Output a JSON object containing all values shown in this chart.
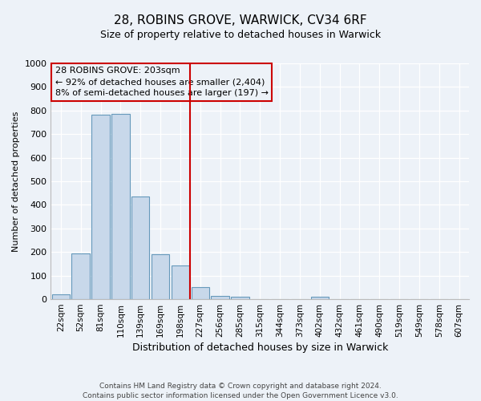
{
  "title": "28, ROBINS GROVE, WARWICK, CV34 6RF",
  "subtitle": "Size of property relative to detached houses in Warwick",
  "xlabel": "Distribution of detached houses by size in Warwick",
  "ylabel": "Number of detached properties",
  "bar_labels": [
    "22sqm",
    "52sqm",
    "81sqm",
    "110sqm",
    "139sqm",
    "169sqm",
    "198sqm",
    "227sqm",
    "256sqm",
    "285sqm",
    "315sqm",
    "344sqm",
    "373sqm",
    "402sqm",
    "432sqm",
    "461sqm",
    "490sqm",
    "519sqm",
    "549sqm",
    "578sqm",
    "607sqm"
  ],
  "bar_values": [
    20,
    195,
    782,
    785,
    437,
    192,
    143,
    50,
    15,
    10,
    0,
    0,
    0,
    10,
    0,
    0,
    0,
    0,
    0,
    0,
    0
  ],
  "bar_color": "#c8d8ea",
  "bar_edge_color": "#6699bb",
  "vline_x_idx": 6.5,
  "vline_color": "#cc0000",
  "ylim": [
    0,
    1000
  ],
  "yticks": [
    0,
    100,
    200,
    300,
    400,
    500,
    600,
    700,
    800,
    900,
    1000
  ],
  "bg_color": "#edf2f8",
  "annotation_title": "28 ROBINS GROVE: 203sqm",
  "annotation_line1": "← 92% of detached houses are smaller (2,404)",
  "annotation_line2": "8% of semi-detached houses are larger (197) →",
  "annotation_box_color": "#cc0000",
  "footer_line1": "Contains HM Land Registry data © Crown copyright and database right 2024.",
  "footer_line2": "Contains public sector information licensed under the Open Government Licence v3.0."
}
